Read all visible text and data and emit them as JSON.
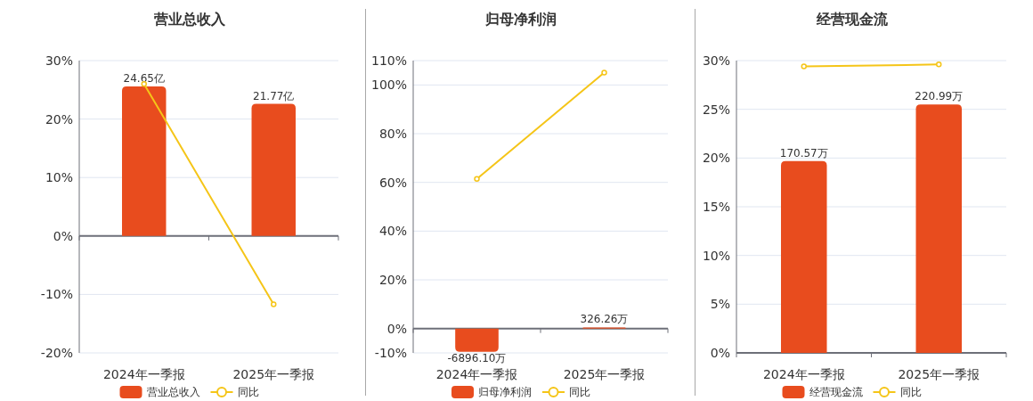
{
  "chart_data": [
    {
      "type": "bar",
      "title": "营业总收入",
      "categories": [
        "2024年一季报",
        "2025年一季报"
      ],
      "series": [
        {
          "name": "营业总收入",
          "axis": "y2",
          "color": "#e84c1e",
          "values": [
            24.65,
            21.77
          ],
          "value_labels": [
            "24.65亿",
            "21.77亿"
          ]
        },
        {
          "name": "同比",
          "type": "line",
          "color": "#f5c518",
          "marker": "circle",
          "values": [
            26.0,
            -11.7
          ]
        }
      ],
      "ylim": [
        -20,
        30
      ],
      "yticks": [
        {
          "value": -20,
          "label": "-20%"
        },
        {
          "value": -10,
          "label": "-10%"
        },
        {
          "value": 0,
          "label": "0%"
        },
        {
          "value": 10,
          "label": "10%"
        },
        {
          "value": 20,
          "label": "20%"
        },
        {
          "value": 30,
          "label": "30%"
        }
      ],
      "y2lim": [
        -19.3,
        28.9
      ],
      "grid": "y",
      "legend": "bottom"
    },
    {
      "type": "bar",
      "title": "归母净利润",
      "categories": [
        "2024年一季报",
        "2025年一季报"
      ],
      "series": [
        {
          "name": "归母净利润",
          "axis": "y2",
          "color": "#e84c1e",
          "values": [
            -6896.1,
            326.26
          ],
          "value_labels": [
            "-6896.10万",
            "326.26万"
          ]
        },
        {
          "name": "同比",
          "type": "line",
          "color": "#f5c518",
          "marker": "circle",
          "values": [
            61.4,
            105.1
          ]
        }
      ],
      "ylim": [
        -10,
        110
      ],
      "yticks": [
        {
          "value": -10,
          "label": "-10%"
        },
        {
          "value": 0,
          "label": "0%"
        },
        {
          "value": 20,
          "label": "20%"
        },
        {
          "value": 40,
          "label": "40%"
        },
        {
          "value": 60,
          "label": "60%"
        },
        {
          "value": 80,
          "label": "80%"
        },
        {
          "value": 100,
          "label": "100%"
        },
        {
          "value": 110,
          "label": "110%"
        }
      ],
      "y2lim": [
        -7200,
        79200
      ],
      "grid": "y",
      "legend": "bottom"
    },
    {
      "type": "bar",
      "title": "经营现金流",
      "categories": [
        "2024年一季报",
        "2025年一季报"
      ],
      "series": [
        {
          "name": "经营现金流",
          "axis": "y2",
          "color": "#e84c1e",
          "values": [
            170.57,
            220.99
          ],
          "value_labels": [
            "170.57万",
            "220.99万"
          ]
        },
        {
          "name": "同比",
          "type": "line",
          "color": "#f5c518",
          "marker": "circle",
          "values": [
            29.4,
            29.6
          ]
        }
      ],
      "ylim": [
        0,
        30
      ],
      "yticks": [
        {
          "value": 0,
          "label": "0%"
        },
        {
          "value": 5,
          "label": "5%"
        },
        {
          "value": 10,
          "label": "10%"
        },
        {
          "value": 15,
          "label": "15%"
        },
        {
          "value": 20,
          "label": "20%"
        },
        {
          "value": 25,
          "label": "25%"
        },
        {
          "value": 30,
          "label": "30%"
        }
      ],
      "y2lim": [
        0,
        260
      ],
      "grid": "y",
      "legend": "bottom"
    }
  ]
}
